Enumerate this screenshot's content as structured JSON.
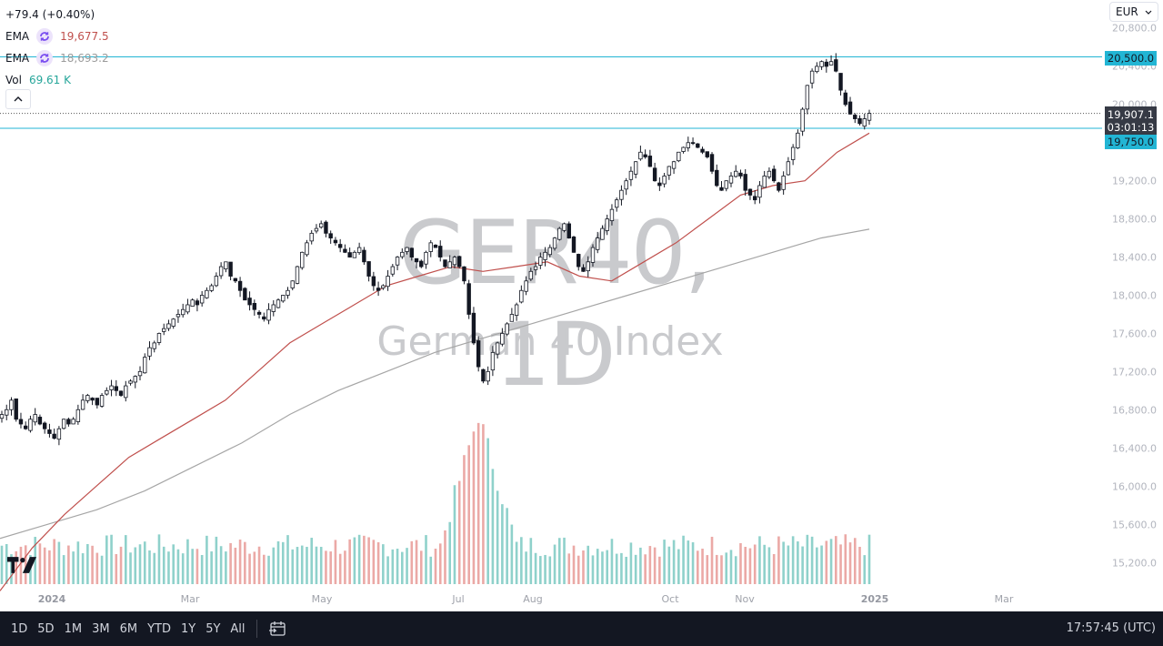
{
  "legend": {
    "change": "+79.4 (+0.40%)",
    "ema1": {
      "label": "EMA",
      "value": "19,677.5",
      "color": "#c0504d"
    },
    "ema2": {
      "label": "EMA",
      "value": "18,693.2",
      "color": "#9b9b9b"
    },
    "vol": {
      "label": "Vol",
      "value": "69.61 K",
      "color": "#26a69a"
    }
  },
  "watermark": {
    "symbol": "GER40, 1D",
    "name": "German 40 Index"
  },
  "currency": "EUR",
  "price_axis": {
    "ticks": [
      "20,800.0",
      "20,400.0",
      "20,000.0",
      "19,200.0",
      "18,800.0",
      "18,400.0",
      "18,000.0",
      "17,600.0",
      "17,200.0",
      "16,800.0",
      "16,400.0",
      "16,000.0",
      "15,600.0",
      "15,200.0"
    ],
    "labels": {
      "resistance": "20,500.0",
      "last_price": "19,907.1",
      "countdown": "03:01:13",
      "support": "19,750.0"
    }
  },
  "time_axis": [
    "2024",
    "Mar",
    "May",
    "Jul",
    "Aug",
    "Oct",
    "Nov",
    "2025",
    "Mar"
  ],
  "bottom_bar": {
    "ranges": [
      "1D",
      "5D",
      "1M",
      "3M",
      "6M",
      "YTD",
      "1Y",
      "5Y",
      "All"
    ],
    "clock": "17:57:45 (UTC)"
  },
  "colors": {
    "line": "#22b5d4",
    "up_vol": "#8fd1cb",
    "down_vol": "#eba9a6",
    "ema_fast": "#c0504d",
    "ema_slow": "#a6a6a6"
  },
  "chart_data": {
    "type": "candlestick",
    "title": "GER40, 1D — German 40 Index",
    "currency": "EUR",
    "y_range": [
      15000,
      20850
    ],
    "horizontal_lines": [
      20500,
      19750
    ],
    "last_price": 19907.1,
    "ema_values": {
      "ema_fast": 19677.5,
      "ema_slow": 18693.2
    },
    "volume_last": "69.61K",
    "x_labels": [
      "2024",
      "Mar",
      "May",
      "Jul",
      "Aug",
      "Oct",
      "Nov",
      "2025",
      "Mar"
    ],
    "closes_approx": [
      16750,
      16800,
      16900,
      16700,
      16650,
      16600,
      16700,
      16750,
      16650,
      16600,
      16550,
      16500,
      16600,
      16700,
      16650,
      16700,
      16800,
      16900,
      16950,
      16900,
      16850,
      16950,
      17000,
      17050,
      17000,
      16950,
      17050,
      17100,
      17150,
      17200,
      17350,
      17450,
      17500,
      17600,
      17650,
      17700,
      17750,
      17800,
      17850,
      17900,
      17950,
      17900,
      18000,
      18050,
      18100,
      18200,
      18300,
      18350,
      18200,
      18150,
      18050,
      17950,
      17900,
      17850,
      17800,
      17750,
      17850,
      17900,
      17950,
      18000,
      18050,
      18150,
      18300,
      18450,
      18550,
      18650,
      18700,
      18750,
      18650,
      18600,
      18550,
      18500,
      18450,
      18400,
      18450,
      18500,
      18350,
      18200,
      18100,
      18050,
      18100,
      18200,
      18300,
      18400,
      18450,
      18500,
      18400,
      18350,
      18300,
      18450,
      18550,
      18500,
      18400,
      18300,
      18350,
      18400,
      18300,
      18150,
      17800,
      17500,
      17250,
      17100,
      17200,
      17400,
      17500,
      17600,
      17700,
      17800,
      17900,
      18050,
      18150,
      18250,
      18300,
      18400,
      18450,
      18500,
      18600,
      18700,
      18750,
      18600,
      18450,
      18300,
      18250,
      18350,
      18500,
      18600,
      18700,
      18800,
      18900,
      19000,
      19100,
      19200,
      19300,
      19400,
      19500,
      19450,
      19350,
      19200,
      19150,
      19250,
      19350,
      19400,
      19500,
      19550,
      19600,
      19600,
      19550,
      19500,
      19450,
      19300,
      19150,
      19100,
      19200,
      19250,
      19300,
      19250,
      19100,
      19050,
      19000,
      19150,
      19250,
      19300,
      19200,
      19100,
      19250,
      19400,
      19550,
      19700,
      19950,
      20200,
      20350,
      20400,
      20450,
      20400,
      20450,
      20350,
      20150,
      20000,
      19900,
      19850,
      19800,
      19850,
      19907
    ],
    "ema_fast_approx": [
      14900,
      15350,
      15700,
      16000,
      16300,
      16500,
      16700,
      16900,
      17200,
      17500,
      17700,
      17900,
      18100,
      18200,
      18300,
      18250,
      18300,
      18350,
      18200,
      18150,
      18350,
      18550,
      18800,
      19050,
      19150,
      19200,
      19500,
      19700
    ],
    "ema_slow_approx": [
      15450,
      15600,
      15750,
      15950,
      16200,
      16450,
      16750,
      17000,
      17200,
      17400,
      17550,
      17700,
      17850,
      18000,
      18150,
      18300,
      18450,
      18600,
      18693
    ],
    "volume_relative": "spike near early August (~16,500 scale), mostly low"
  }
}
